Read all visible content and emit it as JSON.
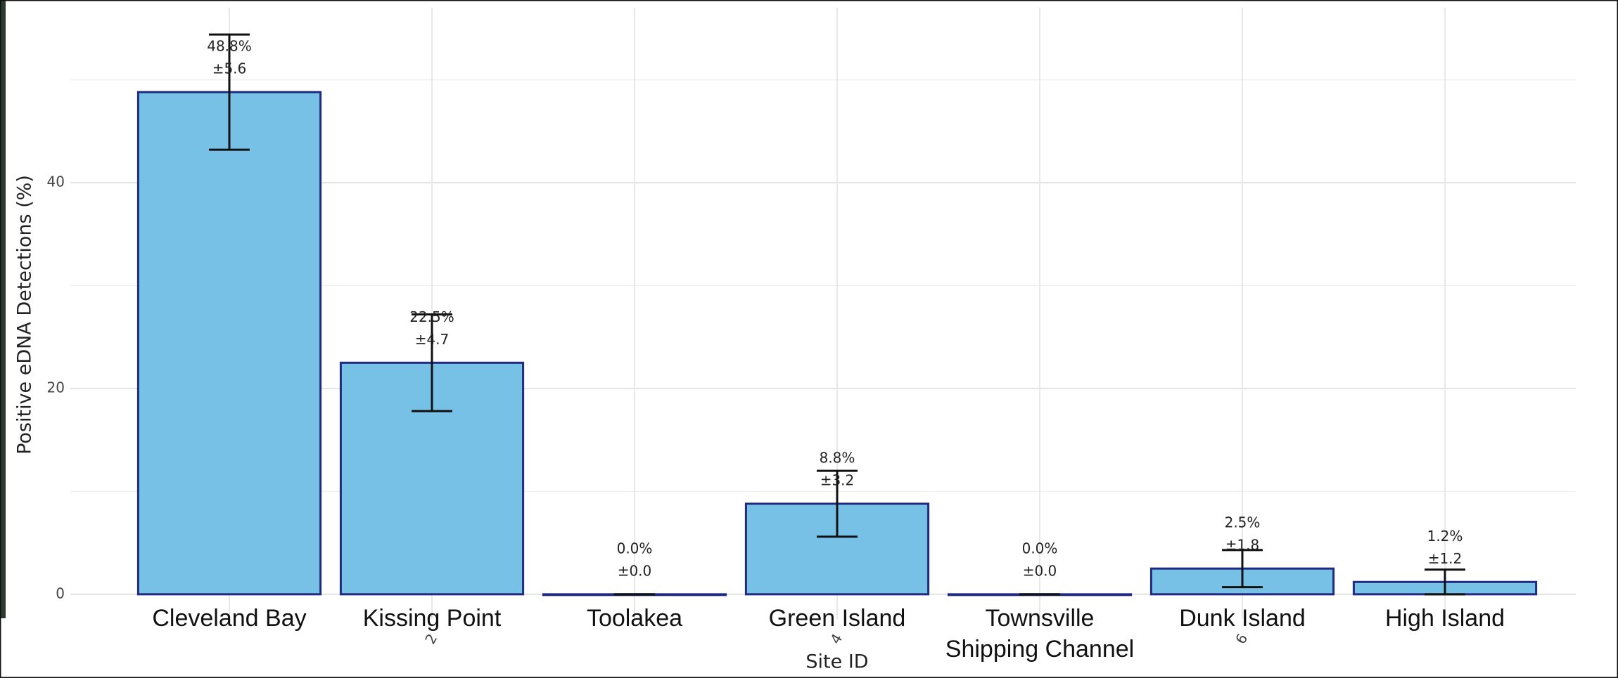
{
  "chart_data": {
    "type": "bar",
    "y_label": "Positive eDNA Detections (%)",
    "x_label": "Site ID",
    "categories": [
      "Cleveland Bay",
      "Kissing Point",
      "Toolakea",
      "Green Island",
      "Townsville\nShipping Channel",
      "Dunk Island",
      "High Island"
    ],
    "x_index_labels": [
      null,
      2,
      null,
      4,
      null,
      6,
      null
    ],
    "values": [
      48.8,
      22.5,
      0.0,
      8.8,
      0.0,
      2.5,
      1.2
    ],
    "value_labels": [
      "48.8%",
      "22.5%",
      "0.0%",
      "8.8%",
      "0.0%",
      "2.5%",
      "1.2%"
    ],
    "errors": [
      5.6,
      4.7,
      0.0,
      3.2,
      0.0,
      1.8,
      1.2
    ],
    "error_labels": [
      "±5.6",
      "±4.7",
      "±0.0",
      "±3.2",
      "±0.0",
      "±1.8",
      "±1.2"
    ],
    "color": "#77c1e6",
    "edge_color": "#1f2a80",
    "ylim": [
      -2.4,
      57.0
    ],
    "yticks": [
      0,
      20,
      40
    ],
    "minor_yticks": [
      10,
      30,
      50
    ],
    "grid": true
  }
}
